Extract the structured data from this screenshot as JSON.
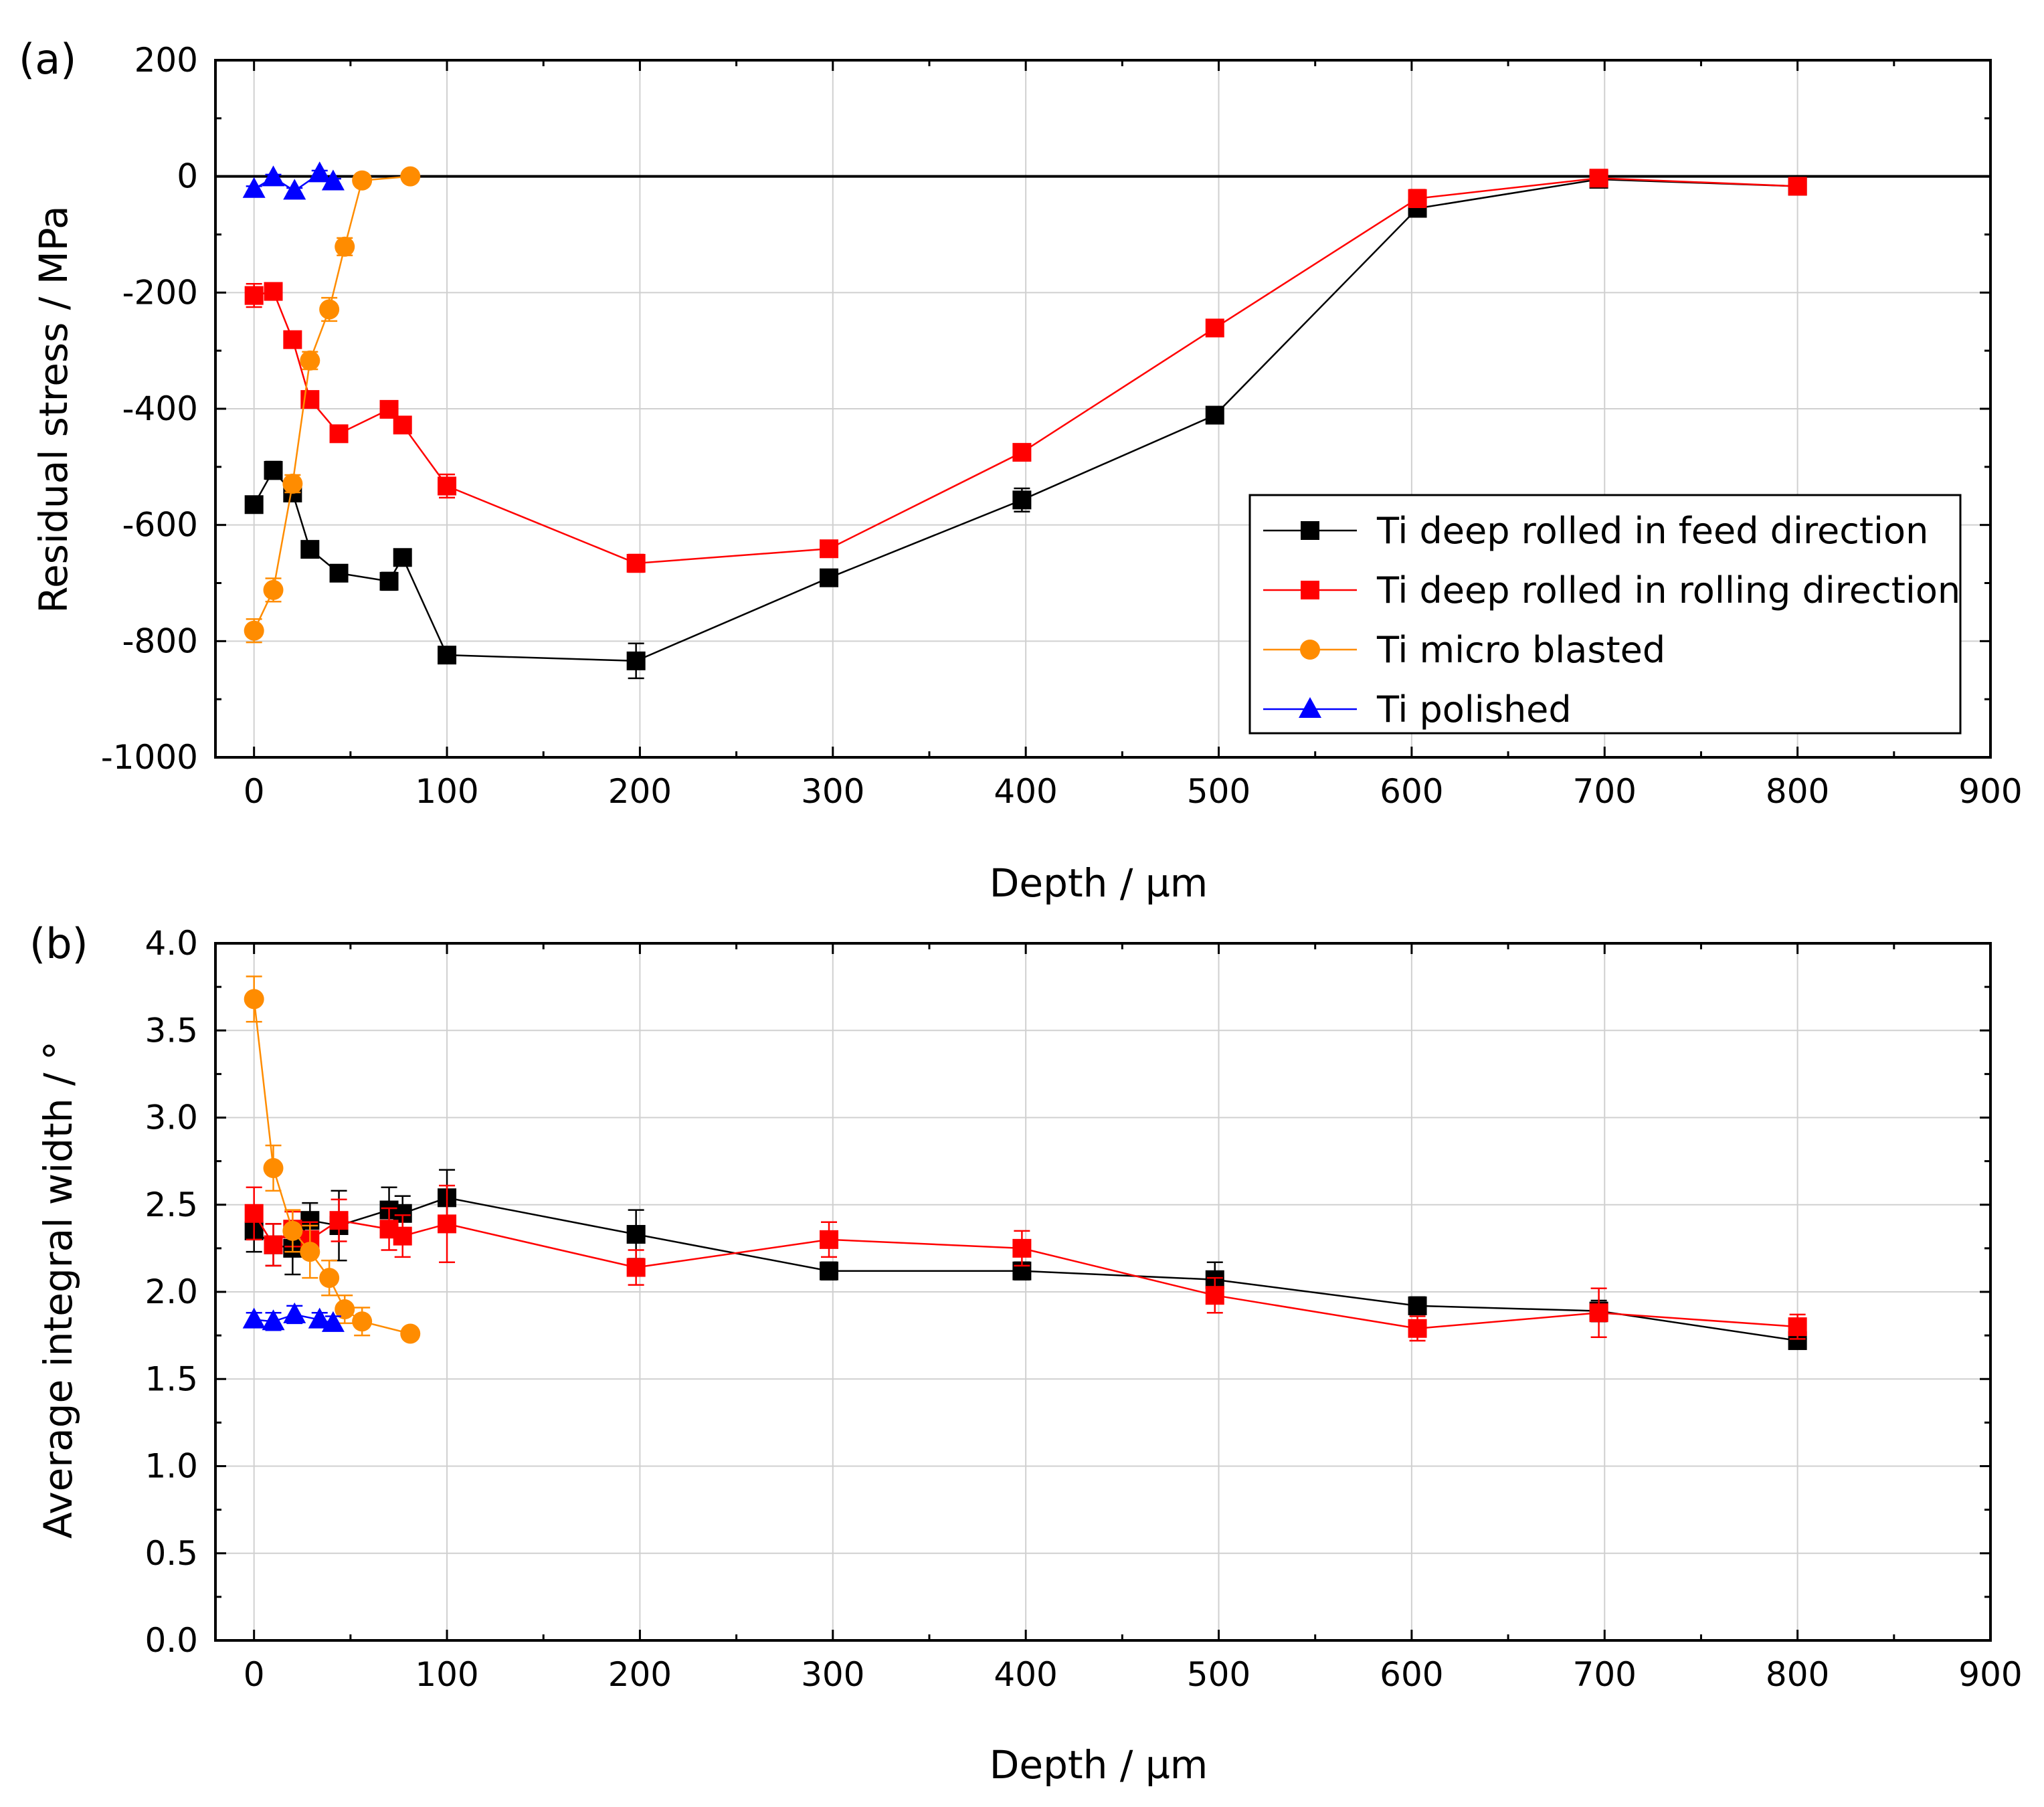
{
  "colors": {
    "feed": "#000000",
    "rolling": "#ff0000",
    "blasted": "#ff8c00",
    "polished": "#0000ff",
    "grid": "#d0d0d0",
    "axis": "#000000"
  },
  "chart_data": [
    {
      "type": "scatter",
      "panel_label": "(a)",
      "xlabel": "Depth / µm",
      "ylabel": "Residual stress / MPa",
      "xlim": [
        -20,
        900
      ],
      "ylim": [
        -1000,
        200
      ],
      "xticks": [
        0,
        100,
        200,
        300,
        400,
        500,
        600,
        700,
        800,
        900
      ],
      "yticks": [
        -1000,
        -800,
        -600,
        -400,
        -200,
        0,
        200
      ],
      "xtick_labels": [
        "0",
        "100",
        "200",
        "300",
        "400",
        "500",
        "600",
        "700",
        "800",
        "900"
      ],
      "ytick_labels": [
        "-1000",
        "-800",
        "-600",
        "-400",
        "-200",
        "0",
        "200"
      ],
      "grid": true,
      "zero_line": true,
      "legend_position": "bottom-right",
      "series": [
        {
          "name": "Ti deep rolled in feed direction",
          "color_key": "feed",
          "marker": "square",
          "x": [
            0,
            10,
            20,
            29,
            44,
            70,
            77,
            100,
            198,
            298,
            398,
            498,
            603,
            697,
            800
          ],
          "y": [
            -565,
            -506,
            -545,
            -642,
            -683,
            -697,
            -656,
            -824,
            -834,
            -691,
            -557,
            -411,
            -55,
            -5,
            -17
          ],
          "err": [
            12,
            15,
            10,
            10,
            10,
            15,
            10,
            12,
            30,
            10,
            20,
            10,
            10,
            8,
            8
          ]
        },
        {
          "name": "Ti deep rolled in rolling direction",
          "color_key": "rolling",
          "marker": "square",
          "x": [
            0,
            10,
            20,
            29,
            44,
            70,
            77,
            100,
            198,
            298,
            398,
            498,
            603,
            697,
            800
          ],
          "y": [
            -205,
            -198,
            -281,
            -384,
            -443,
            -401,
            -428,
            -533,
            -666,
            -641,
            -475,
            -261,
            -38,
            -3,
            -17
          ],
          "err": [
            20,
            12,
            10,
            10,
            12,
            10,
            10,
            20,
            15,
            10,
            12,
            10,
            15,
            8,
            8
          ]
        },
        {
          "name": "Ti micro blasted",
          "color_key": "blasted",
          "marker": "circle",
          "x": [
            0,
            10,
            20,
            29,
            39,
            47,
            56,
            81
          ],
          "y": [
            -782,
            -712,
            -529,
            -317,
            -229,
            -121,
            -7,
            0
          ],
          "err": [
            20,
            20,
            15,
            15,
            20,
            15,
            8,
            5
          ]
        },
        {
          "name": "Ti polished",
          "color_key": "polished",
          "marker": "triangle",
          "x": [
            0,
            10,
            21,
            34,
            41
          ],
          "y": [
            -22,
            -2,
            -25,
            5,
            -9
          ],
          "err": [
            5,
            5,
            5,
            5,
            5
          ]
        }
      ]
    },
    {
      "type": "scatter",
      "panel_label": "(b)",
      "xlabel": "Depth / µm",
      "ylabel": "Average integral width / °",
      "xlim": [
        -20,
        900
      ],
      "ylim": [
        0,
        4
      ],
      "xticks": [
        0,
        100,
        200,
        300,
        400,
        500,
        600,
        700,
        800,
        900
      ],
      "yticks": [
        0,
        0.5,
        1,
        1.5,
        2,
        2.5,
        3,
        3.5,
        4
      ],
      "xtick_labels": [
        "0",
        "100",
        "200",
        "300",
        "400",
        "500",
        "600",
        "700",
        "800",
        "900"
      ],
      "ytick_labels": [
        "0.0",
        "0.5",
        "1.0",
        "1.5",
        "2.0",
        "2.5",
        "3.0",
        "3.5",
        "4.0"
      ],
      "grid": true,
      "zero_line": false,
      "series": [
        {
          "name": "Ti deep rolled in feed direction",
          "color_key": "feed",
          "marker": "square",
          "x": [
            0,
            10,
            20,
            29,
            44,
            70,
            77,
            100,
            198,
            298,
            398,
            498,
            603,
            697,
            800
          ],
          "y": [
            2.35,
            2.27,
            2.25,
            2.41,
            2.38,
            2.47,
            2.45,
            2.54,
            2.33,
            2.12,
            2.12,
            2.07,
            1.92,
            1.89,
            1.72
          ],
          "err": [
            0.12,
            0.12,
            0.15,
            0.1,
            0.2,
            0.13,
            0.1,
            0.16,
            0.14,
            0.05,
            0.05,
            0.1,
            0.05,
            0.06,
            0.03
          ]
        },
        {
          "name": "Ti deep rolled in rolling direction",
          "color_key": "rolling",
          "marker": "square",
          "x": [
            0,
            10,
            20,
            29,
            44,
            70,
            77,
            100,
            198,
            298,
            398,
            498,
            603,
            697,
            800
          ],
          "y": [
            2.45,
            2.27,
            2.36,
            2.3,
            2.41,
            2.36,
            2.32,
            2.39,
            2.14,
            2.3,
            2.25,
            1.98,
            1.79,
            1.88,
            1.8
          ],
          "err": [
            0.15,
            0.12,
            0.1,
            0.1,
            0.12,
            0.12,
            0.12,
            0.22,
            0.1,
            0.1,
            0.1,
            0.1,
            0.07,
            0.14,
            0.07
          ]
        },
        {
          "name": "Ti micro blasted",
          "color_key": "blasted",
          "marker": "circle",
          "x": [
            0,
            10,
            20,
            29,
            39,
            47,
            56,
            81
          ],
          "y": [
            3.68,
            2.71,
            2.35,
            2.23,
            2.08,
            1.9,
            1.83,
            1.76
          ],
          "err": [
            0.13,
            0.13,
            0.12,
            0.15,
            0.1,
            0.08,
            0.08,
            0.03
          ]
        },
        {
          "name": "Ti polished",
          "color_key": "polished",
          "marker": "triangle",
          "x": [
            0,
            10,
            21,
            34,
            41
          ],
          "y": [
            1.84,
            1.83,
            1.87,
            1.84,
            1.82
          ],
          "err": [
            0.04,
            0.05,
            0.05,
            0.04,
            0.04
          ]
        }
      ]
    }
  ]
}
